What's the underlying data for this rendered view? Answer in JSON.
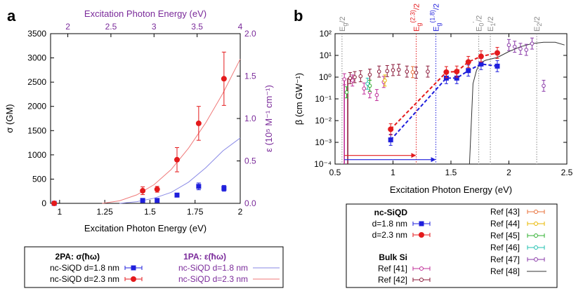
{
  "colors": {
    "blue": "#1f1fdc",
    "red": "#e41a1c",
    "purple": "#7a2a9a",
    "lightblue": "#8a8ae6",
    "lightred": "#f07a7a",
    "gray": "#888888"
  },
  "panel_a": {
    "letter": "a",
    "xlabel": "Excitation Photon Energy (eV)",
    "ylabel": "σ (GM)",
    "top_xlabel": "Excitation Photon Energy (eV)",
    "right_ylabel": "ε (10⁵ M⁻¹ cm⁻¹)",
    "x_ticks": [
      "1",
      "1.25",
      "1.5",
      "1.75",
      "2"
    ],
    "y_ticks": [
      "0",
      "500",
      "1000",
      "1500",
      "2000",
      "2500",
      "3000",
      "3500"
    ],
    "top_ticks": [
      "2",
      "2.5",
      "3",
      "3.5",
      "4"
    ],
    "right_ticks": [
      "0.0",
      "0.5",
      "1.0",
      "1.5",
      "2.0"
    ]
  },
  "panel_b": {
    "letter": "b",
    "xlabel": "Excitation Photon Energy (eV)",
    "ylabel": "β (cm GW⁻¹)",
    "x_ticks": [
      "0.5",
      "1",
      "1.5",
      "2",
      "2.5"
    ],
    "y_ticks": [
      "10⁻⁴",
      "10⁻³",
      "10⁻²",
      "10⁻¹",
      "10⁰",
      "10¹",
      "10²"
    ],
    "vlines": [
      {
        "label": "Eg/2",
        "x": 0.56,
        "color": "gray"
      },
      {
        "label": "Eg(2.3)/2",
        "x": 1.2,
        "color": "red"
      },
      {
        "label": "Eg(1.8)/2",
        "x": 1.37,
        "color": "blue"
      },
      {
        "label": "E0'/2",
        "x": 1.74,
        "color": "gray"
      },
      {
        "label": "E1/2",
        "x": 1.84,
        "color": "gray"
      },
      {
        "label": "E2/2",
        "x": 2.24,
        "color": "gray"
      }
    ]
  },
  "legend_a": {
    "h2pa": "2PA: σ(ħω)",
    "h1pa": "1PA: ε(ħω)",
    "row1": "nc-SiQD d=1.8 nm",
    "row2": "nc-SiQD d=2.3 nm",
    "row1b": "nc-SiQD d=1.8 nm",
    "row2b": "nc-SiQD d=2.3 nm"
  },
  "legend_b": {
    "head_nc": "nc-SiQD",
    "nc1": "d=1.8 nm",
    "nc2": "d=2.3 nm",
    "head_bulk": "Bulk Si",
    "bulk1": "Ref [41]",
    "bulk2": "Ref [42]",
    "refs": [
      "Ref [43]",
      "Ref [44]",
      "Ref [45]",
      "Ref [46]",
      "Ref [47]",
      "Ref [48]"
    ]
  },
  "chart_data": [
    {
      "type": "scatter",
      "panel": "a",
      "xlabel": "Excitation Photon Energy (eV)",
      "ylabel": "σ (GM)",
      "xlim": [
        0.95,
        2.0
      ],
      "ylim": [
        0,
        3500
      ],
      "secondary_x": {
        "label": "Excitation Photon Energy (eV)",
        "lim": [
          1.8,
          4.0
        ]
      },
      "secondary_y": {
        "label": "ε (10⁵ M⁻¹ cm⁻¹)",
        "lim": [
          0,
          2.0
        ]
      },
      "series": [
        {
          "name": "nc-SiQD d=1.8 nm",
          "marker": "square",
          "color": "#1f1fdc",
          "points": [
            {
              "x": 0.97,
              "y": 0,
              "err": 0
            },
            {
              "x": 1.46,
              "y": 60,
              "err": 20
            },
            {
              "x": 1.54,
              "y": 60,
              "err": 20
            },
            {
              "x": 1.65,
              "y": 170,
              "err": 40
            },
            {
              "x": 1.77,
              "y": 350,
              "err": 70
            },
            {
              "x": 1.91,
              "y": 310,
              "err": 60
            }
          ]
        },
        {
          "name": "nc-SiQD d=2.3 nm",
          "marker": "circle",
          "color": "#e41a1c",
          "points": [
            {
              "x": 0.97,
              "y": 0,
              "err": 0
            },
            {
              "x": 1.46,
              "y": 260,
              "err": 80
            },
            {
              "x": 1.54,
              "y": 290,
              "err": 60
            },
            {
              "x": 1.65,
              "y": 900,
              "err": 250
            },
            {
              "x": 1.77,
              "y": 1650,
              "err": 350
            },
            {
              "x": 1.91,
              "y": 2570,
              "err": 550
            }
          ]
        }
      ],
      "curves": [
        {
          "name": "nc-SiQD d=1.8 nm",
          "axis": "secondary",
          "color": "#8a8ae6",
          "x": [
            2.6,
            2.8,
            3.0,
            3.2,
            3.4,
            3.6,
            3.8,
            4.0
          ],
          "y": [
            0.0,
            0.02,
            0.06,
            0.13,
            0.25,
            0.42,
            0.62,
            0.77
          ]
        },
        {
          "name": "nc-SiQD d=2.3 nm",
          "axis": "secondary",
          "color": "#f07a7a",
          "x": [
            2.4,
            2.6,
            2.8,
            3.0,
            3.2,
            3.4,
            3.6,
            3.8,
            4.0
          ],
          "y": [
            0.0,
            0.03,
            0.1,
            0.22,
            0.4,
            0.65,
            0.95,
            1.3,
            1.7
          ]
        }
      ]
    },
    {
      "type": "scatter",
      "panel": "b",
      "xlabel": "Excitation Photon Energy (eV)",
      "ylabel": "β (cm GW⁻¹)",
      "xlim": [
        0.5,
        2.5
      ],
      "ylim": [
        0.0001,
        100
      ],
      "yscale": "log",
      "series": [
        {
          "name": "d=1.8 nm",
          "marker": "square",
          "color": "#1f1fdc",
          "points": [
            {
              "x": 0.98,
              "y": 0.0013
            },
            {
              "x": 1.46,
              "y": 0.9
            },
            {
              "x": 1.55,
              "y": 0.9
            },
            {
              "x": 1.65,
              "y": 2.0
            },
            {
              "x": 1.76,
              "y": 4.0
            },
            {
              "x": 1.9,
              "y": 3.2
            }
          ]
        },
        {
          "name": "d=2.3 nm",
          "marker": "circle",
          "color": "#e41a1c",
          "points": [
            {
              "x": 0.98,
              "y": 0.004
            },
            {
              "x": 1.46,
              "y": 1.7
            },
            {
              "x": 1.55,
              "y": 1.8
            },
            {
              "x": 1.65,
              "y": 5.0
            },
            {
              "x": 1.76,
              "y": 9.0
            },
            {
              "x": 1.9,
              "y": 13.0
            }
          ]
        },
        {
          "name": "Ref [41]",
          "marker": "open-circle",
          "color": "#c0309a",
          "points": [
            {
              "x": 0.58,
              "y": 0.8
            },
            {
              "x": 0.65,
              "y": 0.7
            },
            {
              "x": 0.75,
              "y": 0.3
            },
            {
              "x": 0.8,
              "y": 0.2
            },
            {
              "x": 0.86,
              "y": 0.15
            },
            {
              "x": 0.92,
              "y": 0.6
            }
          ]
        },
        {
          "name": "Ref [42]",
          "marker": "open-circle",
          "color": "#8a1a3a",
          "points": [
            {
              "x": 0.63,
              "y": 0.9
            },
            {
              "x": 0.67,
              "y": 1.0
            },
            {
              "x": 0.72,
              "y": 1.1
            },
            {
              "x": 0.8,
              "y": 1.3
            },
            {
              "x": 0.88,
              "y": 1.8
            },
            {
              "x": 0.95,
              "y": 1.9
            },
            {
              "x": 1.0,
              "y": 2.1
            },
            {
              "x": 1.05,
              "y": 2.2
            },
            {
              "x": 1.12,
              "y": 1.8
            },
            {
              "x": 1.2,
              "y": 1.6
            },
            {
              "x": 1.3,
              "y": 1.8
            }
          ]
        },
        {
          "name": "Ref [43]",
          "marker": "open-circle",
          "color": "#e8703a",
          "points": [
            {
              "x": 1.17,
              "y": 1.7
            }
          ]
        },
        {
          "name": "Ref [44]",
          "marker": "open-circle",
          "color": "#e8b800",
          "points": [
            {
              "x": 0.93,
              "y": 0.7
            }
          ]
        },
        {
          "name": "Ref [45]",
          "marker": "open-circle",
          "color": "#30b030",
          "points": [
            {
              "x": 0.6,
              "y": 0.2
            },
            {
              "x": 0.8,
              "y": 0.4
            }
          ]
        },
        {
          "name": "Ref [46]",
          "marker": "open-circle",
          "color": "#20c0b0",
          "points": [
            {
              "x": 0.78,
              "y": 0.5
            }
          ]
        },
        {
          "name": "Ref [47]",
          "marker": "open-circle",
          "color": "#8a3aa8",
          "points": [
            {
              "x": 2.0,
              "y": 30
            },
            {
              "x": 2.05,
              "y": 25
            },
            {
              "x": 2.1,
              "y": 20
            },
            {
              "x": 2.15,
              "y": 18
            },
            {
              "x": 2.2,
              "y": 35
            },
            {
              "x": 2.3,
              "y": 0.4
            }
          ]
        }
      ],
      "curves": [
        {
          "name": "Ref [48]",
          "color": "#333333",
          "x": [
            1.66,
            1.69,
            1.72,
            1.75,
            1.8,
            1.9,
            2.0,
            2.1,
            2.2,
            2.3,
            2.4,
            2.48
          ],
          "y": [
            0.0001,
            0.5,
            2.0,
            4.5,
            6,
            8,
            15,
            25,
            35,
            40,
            40,
            30
          ]
        },
        {
          "name": "Ref [41] cutoff",
          "color": "#c0309a",
          "x": [
            0.58,
            0.58
          ],
          "y": [
            0.0001,
            0.8
          ]
        },
        {
          "name": "Ref [42] cutoff",
          "color": "#8a1a3a",
          "x": [
            0.61,
            0.61
          ],
          "y": [
            0.0001,
            0.9
          ]
        }
      ],
      "arrows": [
        {
          "color": "#e41a1c",
          "from": 0.58,
          "to": 1.2,
          "y": 0.00025
        },
        {
          "color": "#1f1fdc",
          "from": 0.58,
          "to": 1.37,
          "y": 0.00016
        }
      ]
    }
  ]
}
